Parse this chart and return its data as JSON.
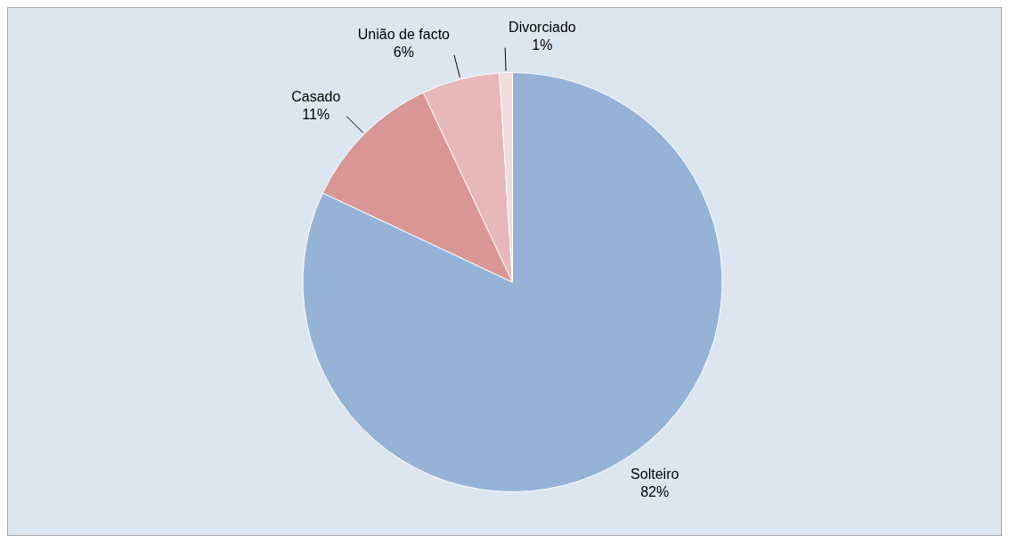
{
  "chart_data": {
    "type": "pie",
    "categories": [
      "Solteiro",
      "Casado",
      "União de facto",
      "Divorciado"
    ],
    "values": [
      82,
      11,
      6,
      1
    ],
    "colors": [
      "#95b3d7",
      "#da9694",
      "#e6b9b8",
      "#f2dcdb"
    ],
    "value_labels": [
      "82%",
      "11%",
      "6%",
      "1%"
    ],
    "legend": false
  }
}
